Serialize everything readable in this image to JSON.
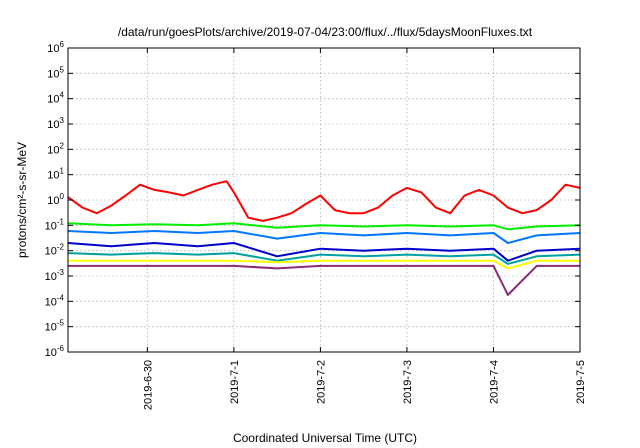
{
  "chart_data": {
    "type": "line",
    "title": "/data/run/goesPlots/archive/2019-07-04/23:00/flux/../flux/5daysMoonFluxes.txt",
    "xlabel": "Coordinated Universal Time (UTC)",
    "ylabel": "protons/cm²-s-sr-MeV",
    "yscale": "log",
    "ylim": [
      1e-06,
      1000000.0
    ],
    "xlim": [
      "2019-06-29T02:00",
      "2019-07-05T00:00"
    ],
    "grid": true,
    "y_ticks": [
      {
        "value": 1e-06,
        "base": "10",
        "exp": "-6"
      },
      {
        "value": 1e-05,
        "base": "10",
        "exp": "-5"
      },
      {
        "value": 0.0001,
        "base": "10",
        "exp": "-4"
      },
      {
        "value": 0.001,
        "base": "10",
        "exp": "-3"
      },
      {
        "value": 0.01,
        "base": "10",
        "exp": "-2"
      },
      {
        "value": 0.1,
        "base": "10",
        "exp": "-1"
      },
      {
        "value": 1.0,
        "base": "10",
        "exp": "0"
      },
      {
        "value": 10.0,
        "base": "10",
        "exp": "1"
      },
      {
        "value": 100.0,
        "base": "10",
        "exp": "2"
      },
      {
        "value": 1000.0,
        "base": "10",
        "exp": "3"
      },
      {
        "value": 10000.0,
        "base": "10",
        "exp": "4"
      },
      {
        "value": 100000.0,
        "base": "10",
        "exp": "5"
      },
      {
        "value": 1000000.0,
        "base": "10",
        "exp": "6"
      }
    ],
    "x_ticks": [
      {
        "date": "2019-06-30T00:00",
        "label": "2019-6-30"
      },
      {
        "date": "2019-07-01T00:00",
        "label": "2019-7-1"
      },
      {
        "date": "2019-07-02T00:00",
        "label": "2019-7-2"
      },
      {
        "date": "2019-07-03T00:00",
        "label": "2019-7-3"
      },
      {
        "date": "2019-07-04T00:00",
        "label": "2019-7-4"
      },
      {
        "date": "2019-07-05T00:00",
        "label": "2019-7-5"
      }
    ],
    "series": [
      {
        "color": "#ff0000",
        "x": [
          "2019-06-29T02:00",
          "2019-06-29T06:00",
          "2019-06-29T10:00",
          "2019-06-29T14:00",
          "2019-06-29T18:00",
          "2019-06-29T22:00",
          "2019-06-30T02:00",
          "2019-06-30T06:00",
          "2019-06-30T10:00",
          "2019-06-30T14:00",
          "2019-06-30T18:00",
          "2019-06-30T22:00",
          "2019-07-01T00:00",
          "2019-07-01T04:00",
          "2019-07-01T08:00",
          "2019-07-01T12:00",
          "2019-07-01T16:00",
          "2019-07-01T20:00",
          "2019-07-02T00:00",
          "2019-07-02T04:00",
          "2019-07-02T08:00",
          "2019-07-02T12:00",
          "2019-07-02T16:00",
          "2019-07-02T20:00",
          "2019-07-03T00:00",
          "2019-07-03T04:00",
          "2019-07-03T08:00",
          "2019-07-03T12:00",
          "2019-07-03T16:00",
          "2019-07-03T20:00",
          "2019-07-04T00:00",
          "2019-07-04T04:00",
          "2019-07-04T08:00",
          "2019-07-04T12:00",
          "2019-07-04T16:00",
          "2019-07-04T20:00",
          "2019-07-05T00:00"
        ],
        "y": [
          1.3,
          0.5,
          0.3,
          0.6,
          1.5,
          4.0,
          2.5,
          2.0,
          1.5,
          2.5,
          4.0,
          5.5,
          2.0,
          0.2,
          0.15,
          0.2,
          0.3,
          0.7,
          1.5,
          0.4,
          0.3,
          0.3,
          0.5,
          1.5,
          3.0,
          2.0,
          0.5,
          0.3,
          1.5,
          2.5,
          1.5,
          0.5,
          0.3,
          0.4,
          1.0,
          4.0,
          3.0
        ]
      },
      {
        "color": "#00ee00",
        "x": [
          "2019-06-29T02:00",
          "2019-06-29T14:00",
          "2019-06-30T02:00",
          "2019-06-30T14:00",
          "2019-07-01T00:00",
          "2019-07-01T12:00",
          "2019-07-02T00:00",
          "2019-07-02T12:00",
          "2019-07-03T00:00",
          "2019-07-03T12:00",
          "2019-07-04T00:00",
          "2019-07-04T04:00",
          "2019-07-04T12:00",
          "2019-07-05T00:00"
        ],
        "y": [
          0.12,
          0.1,
          0.11,
          0.1,
          0.12,
          0.08,
          0.1,
          0.09,
          0.1,
          0.09,
          0.1,
          0.07,
          0.09,
          0.1
        ]
      },
      {
        "color": "#0077ff",
        "x": [
          "2019-06-29T02:00",
          "2019-06-29T14:00",
          "2019-06-30T02:00",
          "2019-06-30T14:00",
          "2019-07-01T00:00",
          "2019-07-01T12:00",
          "2019-07-02T00:00",
          "2019-07-02T12:00",
          "2019-07-03T00:00",
          "2019-07-03T12:00",
          "2019-07-04T00:00",
          "2019-07-04T04:00",
          "2019-07-04T12:00",
          "2019-07-05T00:00"
        ],
        "y": [
          0.06,
          0.05,
          0.06,
          0.05,
          0.06,
          0.03,
          0.05,
          0.04,
          0.05,
          0.04,
          0.05,
          0.02,
          0.04,
          0.05
        ]
      },
      {
        "color": "#0000cc",
        "x": [
          "2019-06-29T02:00",
          "2019-06-29T14:00",
          "2019-06-30T02:00",
          "2019-06-30T14:00",
          "2019-07-01T00:00",
          "2019-07-01T12:00",
          "2019-07-02T00:00",
          "2019-07-02T12:00",
          "2019-07-03T00:00",
          "2019-07-03T12:00",
          "2019-07-04T00:00",
          "2019-07-04T04:00",
          "2019-07-04T12:00",
          "2019-07-05T00:00"
        ],
        "y": [
          0.02,
          0.015,
          0.02,
          0.015,
          0.02,
          0.006,
          0.012,
          0.01,
          0.012,
          0.01,
          0.012,
          0.004,
          0.01,
          0.012
        ]
      },
      {
        "color": "#00a0a0",
        "x": [
          "2019-06-29T02:00",
          "2019-06-29T14:00",
          "2019-06-30T02:00",
          "2019-06-30T14:00",
          "2019-07-01T00:00",
          "2019-07-01T12:00",
          "2019-07-02T00:00",
          "2019-07-02T12:00",
          "2019-07-03T00:00",
          "2019-07-03T12:00",
          "2019-07-04T00:00",
          "2019-07-04T04:00",
          "2019-07-04T12:00",
          "2019-07-05T00:00"
        ],
        "y": [
          0.008,
          0.007,
          0.008,
          0.007,
          0.008,
          0.004,
          0.007,
          0.006,
          0.007,
          0.006,
          0.007,
          0.003,
          0.006,
          0.007
        ]
      },
      {
        "color": "#ffff00",
        "x": [
          "2019-06-29T02:00",
          "2019-06-29T14:00",
          "2019-06-30T02:00",
          "2019-06-30T14:00",
          "2019-07-01T00:00",
          "2019-07-01T12:00",
          "2019-07-02T00:00",
          "2019-07-02T12:00",
          "2019-07-03T00:00",
          "2019-07-03T12:00",
          "2019-07-04T00:00",
          "2019-07-04T04:00",
          "2019-07-04T12:00",
          "2019-07-05T00:00"
        ],
        "y": [
          0.004,
          0.004,
          0.004,
          0.004,
          0.004,
          0.0035,
          0.004,
          0.004,
          0.004,
          0.004,
          0.004,
          0.002,
          0.004,
          0.004
        ]
      },
      {
        "color": "#8b2a7a",
        "x": [
          "2019-06-29T02:00",
          "2019-06-29T14:00",
          "2019-06-30T02:00",
          "2019-06-30T14:00",
          "2019-07-01T00:00",
          "2019-07-01T12:00",
          "2019-07-02T00:00",
          "2019-07-02T12:00",
          "2019-07-03T00:00",
          "2019-07-03T12:00",
          "2019-07-04T00:00",
          "2019-07-04T04:00",
          "2019-07-04T12:00",
          "2019-07-05T00:00"
        ],
        "y": [
          0.0025,
          0.0025,
          0.0025,
          0.0025,
          0.0025,
          0.002,
          0.0025,
          0.0025,
          0.0025,
          0.0025,
          0.0025,
          0.00018,
          0.0025,
          0.0025
        ]
      }
    ]
  }
}
